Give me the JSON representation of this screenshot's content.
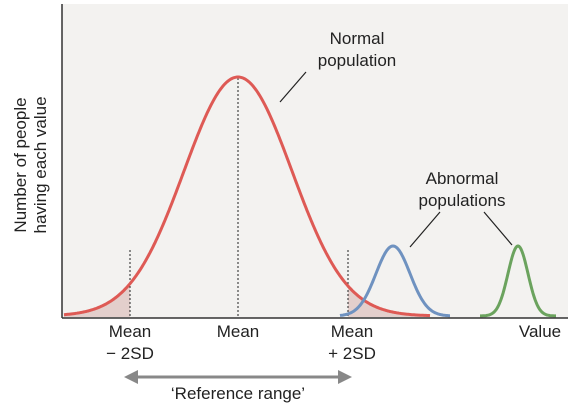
{
  "y_axis_label": [
    "Number of people",
    "having each value"
  ],
  "normal_label": [
    "Normal",
    "population"
  ],
  "abnormal_label": [
    "Abnormal",
    "populations"
  ],
  "x_labels": {
    "minus": [
      "Mean",
      "− 2SD"
    ],
    "mean": "Mean",
    "plus": [
      "Mean",
      "+ 2SD"
    ],
    "value": "Value"
  },
  "range_label": "‘Reference range’"
}
